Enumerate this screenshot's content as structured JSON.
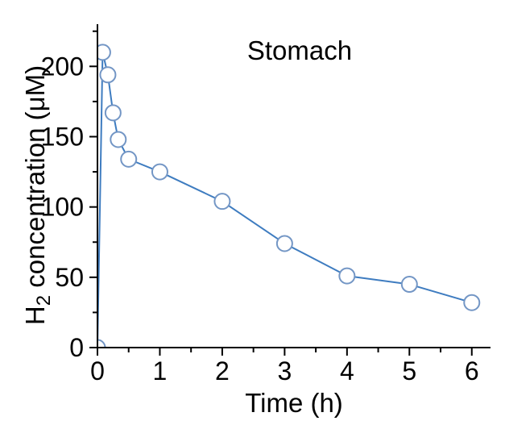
{
  "title": "Stomach",
  "chart_data": {
    "type": "line",
    "title": "Stomach",
    "xlabel": "Time (h)",
    "ylabel": "H2 concentration (μM)",
    "ylabel_parts": {
      "base": "H",
      "sub": "2",
      "rest": " concentration (μM)"
    },
    "series": [
      {
        "name": "H2 concentration in stomach",
        "x": [
          0,
          0.083,
          0.167,
          0.25,
          0.333,
          0.5,
          1,
          2,
          3,
          4,
          5,
          6
        ],
        "y": [
          0,
          210,
          194,
          167,
          148,
          134,
          125,
          104,
          74,
          51,
          45,
          32
        ]
      }
    ],
    "xlim": [
      0,
      6.3
    ],
    "ylim": [
      0,
      230
    ],
    "x_major_ticks": [
      0,
      1,
      2,
      3,
      4,
      5,
      6
    ],
    "x_minor_ticks": [
      0.5,
      1.5,
      2.5,
      3.5,
      4.5,
      5.5
    ],
    "y_major_ticks": [
      0,
      50,
      100,
      150,
      200
    ],
    "y_minor_ticks": [
      25,
      75,
      125,
      175,
      225
    ],
    "grid": false,
    "legend": null,
    "marker": "open-circle",
    "colors": {
      "line": "#3E7CC0",
      "marker_stroke": "#7396C5",
      "marker_fill": "#FFFFFF",
      "axis": "#000000",
      "background": "#FFFFFF",
      "text": "#000000"
    }
  }
}
